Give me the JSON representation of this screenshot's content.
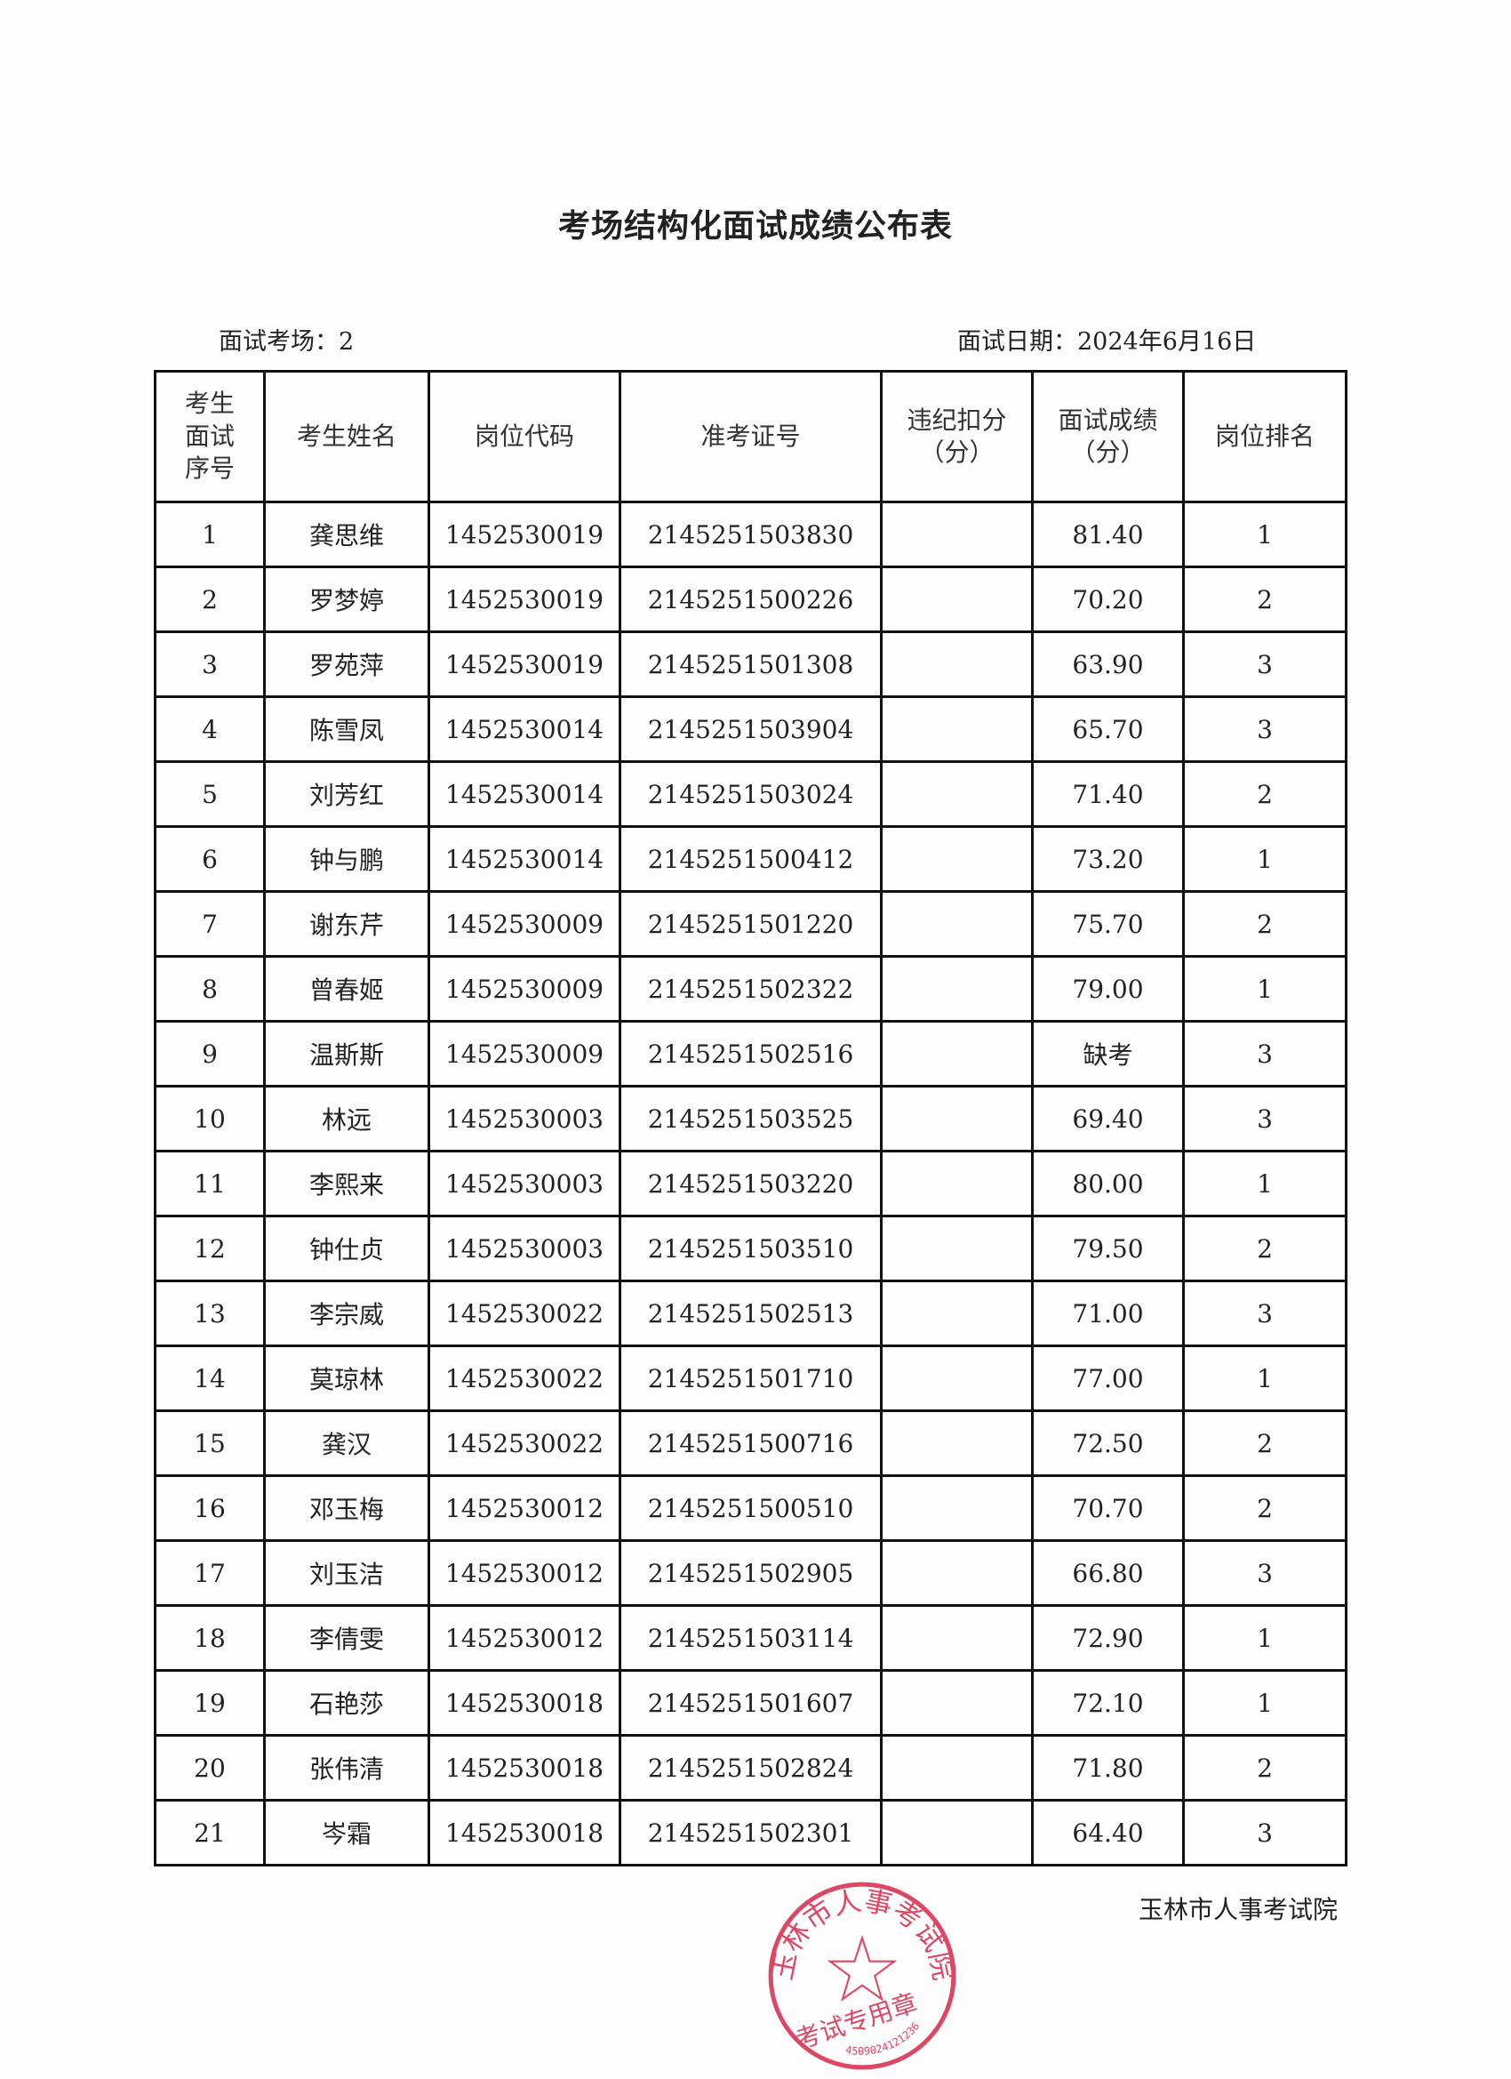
{
  "title": "考场结构化面试成绩公布表",
  "exam_room": "面试考场：2",
  "exam_date": "面试日期：2024年6月16日",
  "columns": [
    "考生面试序号",
    "考生姓名",
    "岗位代码",
    "准考证号",
    "违纪扣分（分）",
    "面试成绩（分）",
    "岗位排名"
  ],
  "rows": [
    [
      "1",
      "龚思维",
      "1452530019",
      "2145251503830",
      "",
      "81.40",
      "1"
    ],
    [
      "2",
      "罗梦婷",
      "1452530019",
      "2145251500226",
      "",
      "70.20",
      "2"
    ],
    [
      "3",
      "罗苑萍",
      "1452530019",
      "2145251501308",
      "",
      "63.90",
      "3"
    ],
    [
      "4",
      "陈雪凤",
      "1452530014",
      "2145251503904",
      "",
      "65.70",
      "3"
    ],
    [
      "5",
      "刘芳红",
      "1452530014",
      "2145251503024",
      "",
      "71.40",
      "2"
    ],
    [
      "6",
      "钟与鹏",
      "1452530014",
      "2145251500412",
      "",
      "73.20",
      "1"
    ],
    [
      "7",
      "谢东芹",
      "1452530009",
      "2145251501220",
      "",
      "75.70",
      "2"
    ],
    [
      "8",
      "曾春姬",
      "1452530009",
      "2145251502322",
      "",
      "79.00",
      "1"
    ],
    [
      "9",
      "温斯斯",
      "1452530009",
      "2145251502516",
      "",
      "缺考",
      "3"
    ],
    [
      "10",
      "林远",
      "1452530003",
      "2145251503525",
      "",
      "69.40",
      "3"
    ],
    [
      "11",
      "李熙来",
      "1452530003",
      "2145251503220",
      "",
      "80.00",
      "1"
    ],
    [
      "12",
      "钟仕贞",
      "1452530003",
      "2145251503510",
      "",
      "79.50",
      "2"
    ],
    [
      "13",
      "李宗威",
      "1452530022",
      "2145251502513",
      "",
      "71.00",
      "3"
    ],
    [
      "14",
      "莫琼林",
      "1452530022",
      "2145251501710",
      "",
      "77.00",
      "1"
    ],
    [
      "15",
      "龚汉",
      "1452530022",
      "2145251500716",
      "",
      "72.50",
      "2"
    ],
    [
      "16",
      "邓玉梅",
      "1452530012",
      "2145251500510",
      "",
      "70.70",
      "2"
    ],
    [
      "17",
      "刘玉洁",
      "1452530012",
      "2145251502905",
      "",
      "66.80",
      "3"
    ],
    [
      "18",
      "李倩雯",
      "1452530012",
      "2145251503114",
      "",
      "72.90",
      "1"
    ],
    [
      "19",
      "石艳莎",
      "1452530018",
      "2145251501607",
      "",
      "72.10",
      "1"
    ],
    [
      "20",
      "张伟清",
      "1452530018",
      "2145251502824",
      "",
      "71.80",
      "2"
    ],
    [
      "21",
      "岑霜",
      "1452530018",
      "2145251502301",
      "",
      "64.40",
      "3"
    ]
  ],
  "footer": "玉林市人事考试院",
  "stamp": {
    "top_text": "玉林市人事考试院",
    "center_text": "考试专用章",
    "code": "4509024121236",
    "color": "#d9284a"
  }
}
